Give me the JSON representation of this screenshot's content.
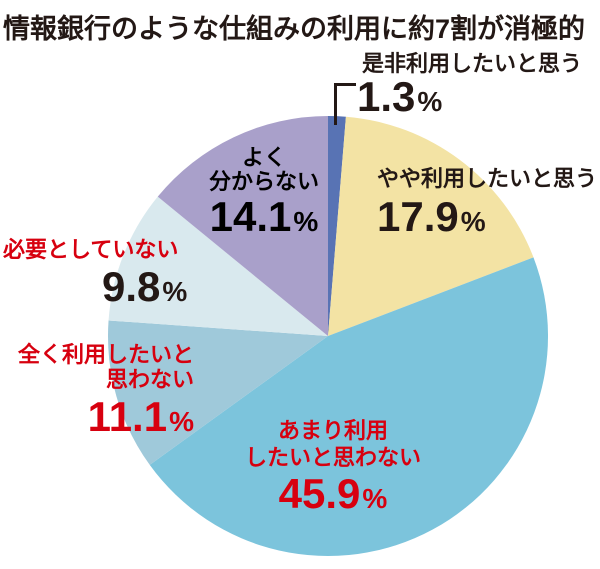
{
  "title": "情報銀行のような仕組みの利用に約7割が消極的",
  "percent_sign": "%",
  "colors": {
    "text_black": "#231815",
    "text_red": "#d7000f",
    "background": "#ffffff"
  },
  "chart_data": {
    "type": "pie",
    "title": "情報銀行のような仕組みの利用に約7割が消極的",
    "unit": "%",
    "start_angle": "12-o-clock",
    "direction": "clockwise",
    "slices": [
      {
        "label": "是非利用したいと思う",
        "value": 1.3,
        "value_text": "1.3",
        "color": "#5873b4",
        "label_color": "#231815"
      },
      {
        "label": "やや利用したいと思う",
        "value": 17.9,
        "value_text": "17.9",
        "color": "#f3e3a4",
        "label_color": "#231815"
      },
      {
        "label": "あまり利用したいと思わない",
        "value": 45.9,
        "value_text": "45.9",
        "color": "#7cc4dc",
        "label_color": "#d7000f",
        "label_lines": [
          "あまり利用",
          "したいと思わない"
        ]
      },
      {
        "label": "全く利用したいと思わない",
        "value": 11.1,
        "value_text": "11.1",
        "color": "#9fc9da",
        "label_color": "#d7000f",
        "label_lines": [
          "全く利用したいと",
          "思わない"
        ]
      },
      {
        "label": "必要としていない",
        "value": 9.8,
        "value_text": "9.8",
        "color": "#d9e9ee",
        "label_color": "#d7000f"
      },
      {
        "label": "よく分からない",
        "value": 14.1,
        "value_text": "14.1",
        "color": "#a9a0ca",
        "label_color": "#231815",
        "label_lines": [
          "よく",
          "分からない"
        ]
      }
    ]
  }
}
